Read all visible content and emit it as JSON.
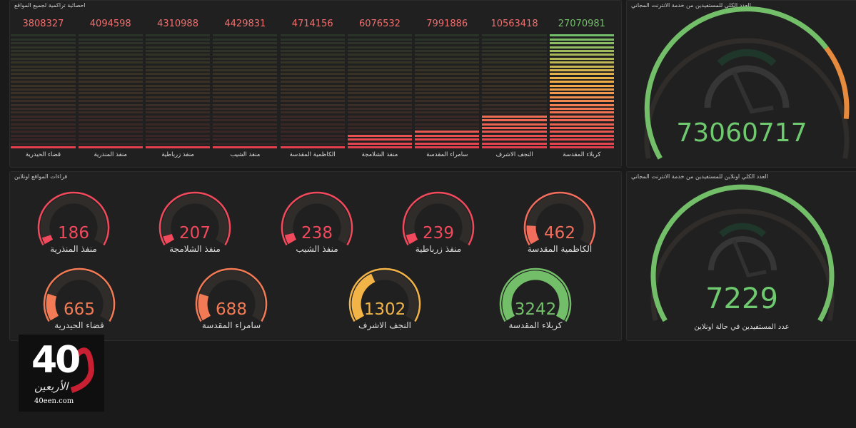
{
  "bars_panel": {
    "title": "احصائية تراكمية لجميع المواقع",
    "bars": [
      {
        "label": "كربلاء المقدسة",
        "value": 27070981,
        "value_text": "27070981",
        "fraction": 1.0
      },
      {
        "label": "النجف الاشرف",
        "value": 10563418,
        "value_text": "10563418",
        "fraction": 0.31
      },
      {
        "label": "سامراء المقدسة",
        "value": 7991886,
        "value_text": "7991886",
        "fraction": 0.17
      },
      {
        "label": "منفذ الشلامجة",
        "value": 6076532,
        "value_text": "6076532",
        "fraction": 0.12
      },
      {
        "label": "الكاظمية المقدسة",
        "value": 4714156,
        "value_text": "4714156",
        "fraction": 0.04
      },
      {
        "label": "منفذ الشيب",
        "value": 4429831,
        "value_text": "4429831",
        "fraction": 0.03
      },
      {
        "label": "منفذ زرباطية",
        "value": 4310988,
        "value_text": "4310988",
        "fraction": 0.03
      },
      {
        "label": "منفذ المنذرية",
        "value": 4094598,
        "value_text": "4094598",
        "fraction": 0.03
      },
      {
        "label": "قضاء الحيدرية",
        "value": 3808327,
        "value_text": "3808327",
        "fraction": 0.03
      }
    ]
  },
  "total_panel": {
    "title": "العدد الكلي للمستفيدين من خدمة الانترنت المجاني",
    "value": "73060717",
    "fraction": 0.9
  },
  "gauges_panel": {
    "title": "قراءات المواقع اونلاين",
    "gauges": [
      {
        "label": "الكاظمية المقدسة",
        "value": "462",
        "fraction": 0.14,
        "color": "#f26d5b"
      },
      {
        "label": "منفذ زرباطية",
        "value": "239",
        "fraction": 0.07,
        "color": "#f2495c"
      },
      {
        "label": "منفذ الشيب",
        "value": "238",
        "fraction": 0.07,
        "color": "#f2495c"
      },
      {
        "label": "منفذ الشلامجة",
        "value": "207",
        "fraction": 0.06,
        "color": "#f2495c"
      },
      {
        "label": "منفذ المنذرية",
        "value": "186",
        "fraction": 0.05,
        "color": "#f2495c"
      },
      {
        "label": "كربلاء المقدسة",
        "value": "3242",
        "fraction": 1.0,
        "color": "#73bf69"
      },
      {
        "label": "النجف الاشرف",
        "value": "1302",
        "fraction": 0.4,
        "color": "#f2b347"
      },
      {
        "label": "سامراء المقدسة",
        "value": "688",
        "fraction": 0.2,
        "color": "#f27a54"
      },
      {
        "label": "قضاء الحيدرية",
        "value": "665",
        "fraction": 0.2,
        "color": "#f27a54"
      }
    ]
  },
  "online_panel": {
    "title": "العدد الكلي اونلاين للمستفيدين من خدمة الانترنت المجاني",
    "value": "7229",
    "label": "عدد المستفيدين في حالة اونلاين",
    "fraction": 1.0
  },
  "logo": {
    "number": "40",
    "script": "الأربعين",
    "site": "40een.com"
  },
  "colors": {
    "green": "#73bf69",
    "yellow": "#f2b347",
    "orange": "#f27a54",
    "red": "#f2495c",
    "track": "#2f2c2a"
  }
}
